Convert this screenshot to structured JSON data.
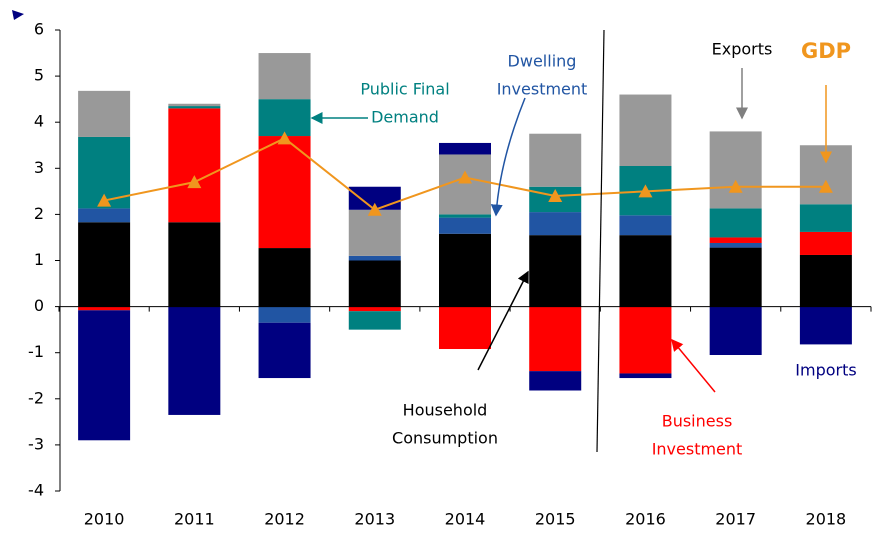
{
  "chart_data": {
    "type": "bar",
    "stacked": true,
    "categories": [
      "2010",
      "2011",
      "2012",
      "2013",
      "2014",
      "2015",
      "2016",
      "2017",
      "2018"
    ],
    "ylim": [
      -4,
      6
    ],
    "yticks": [
      -4,
      -3,
      -2,
      -1,
      0,
      1,
      2,
      3,
      4,
      5,
      6
    ],
    "series": [
      {
        "name": [
          "Household",
          "Consumption"
        ],
        "color": "#000000",
        "values": [
          1.83,
          1.83,
          1.27,
          1.0,
          1.58,
          1.55,
          1.55,
          1.28,
          1.12
        ]
      },
      {
        "name": [
          "Dwelling",
          "Investment"
        ],
        "color": "#2155a3",
        "values": [
          0.3,
          0,
          -0.35,
          0.1,
          0.35,
          0.5,
          0.43,
          0.1,
          0
        ]
      },
      {
        "name": [
          "Business",
          "Investment"
        ],
        "color": "#ff0000",
        "values": [
          -0.08,
          2.47,
          2.43,
          -0.1,
          -0.92,
          -1.4,
          -1.45,
          0.12,
          0.5
        ]
      },
      {
        "name": [
          "Public Final",
          "Demand"
        ],
        "color": "#008080",
        "values": [
          1.55,
          0.05,
          0.8,
          -0.4,
          0.07,
          0.55,
          1.07,
          0.63,
          0.6
        ]
      },
      {
        "name": [
          "Exports"
        ],
        "color": "#999999",
        "values": [
          1.0,
          0.05,
          1.0,
          1.0,
          1.3,
          1.15,
          1.55,
          1.67,
          1.28
        ]
      },
      {
        "name": [
          "Imports"
        ],
        "color": "#000080",
        "values": [
          -2.82,
          -2.35,
          -1.2,
          0.5,
          0.25,
          -0.42,
          -0.1,
          -1.05,
          -0.82
        ]
      },
      {
        "name": [
          "GDP"
        ],
        "type": "line",
        "color": "#f0961e",
        "values": [
          2.3,
          2.7,
          3.65,
          2.1,
          2.8,
          2.4,
          2.5,
          2.6,
          2.6
        ]
      }
    ]
  }
}
